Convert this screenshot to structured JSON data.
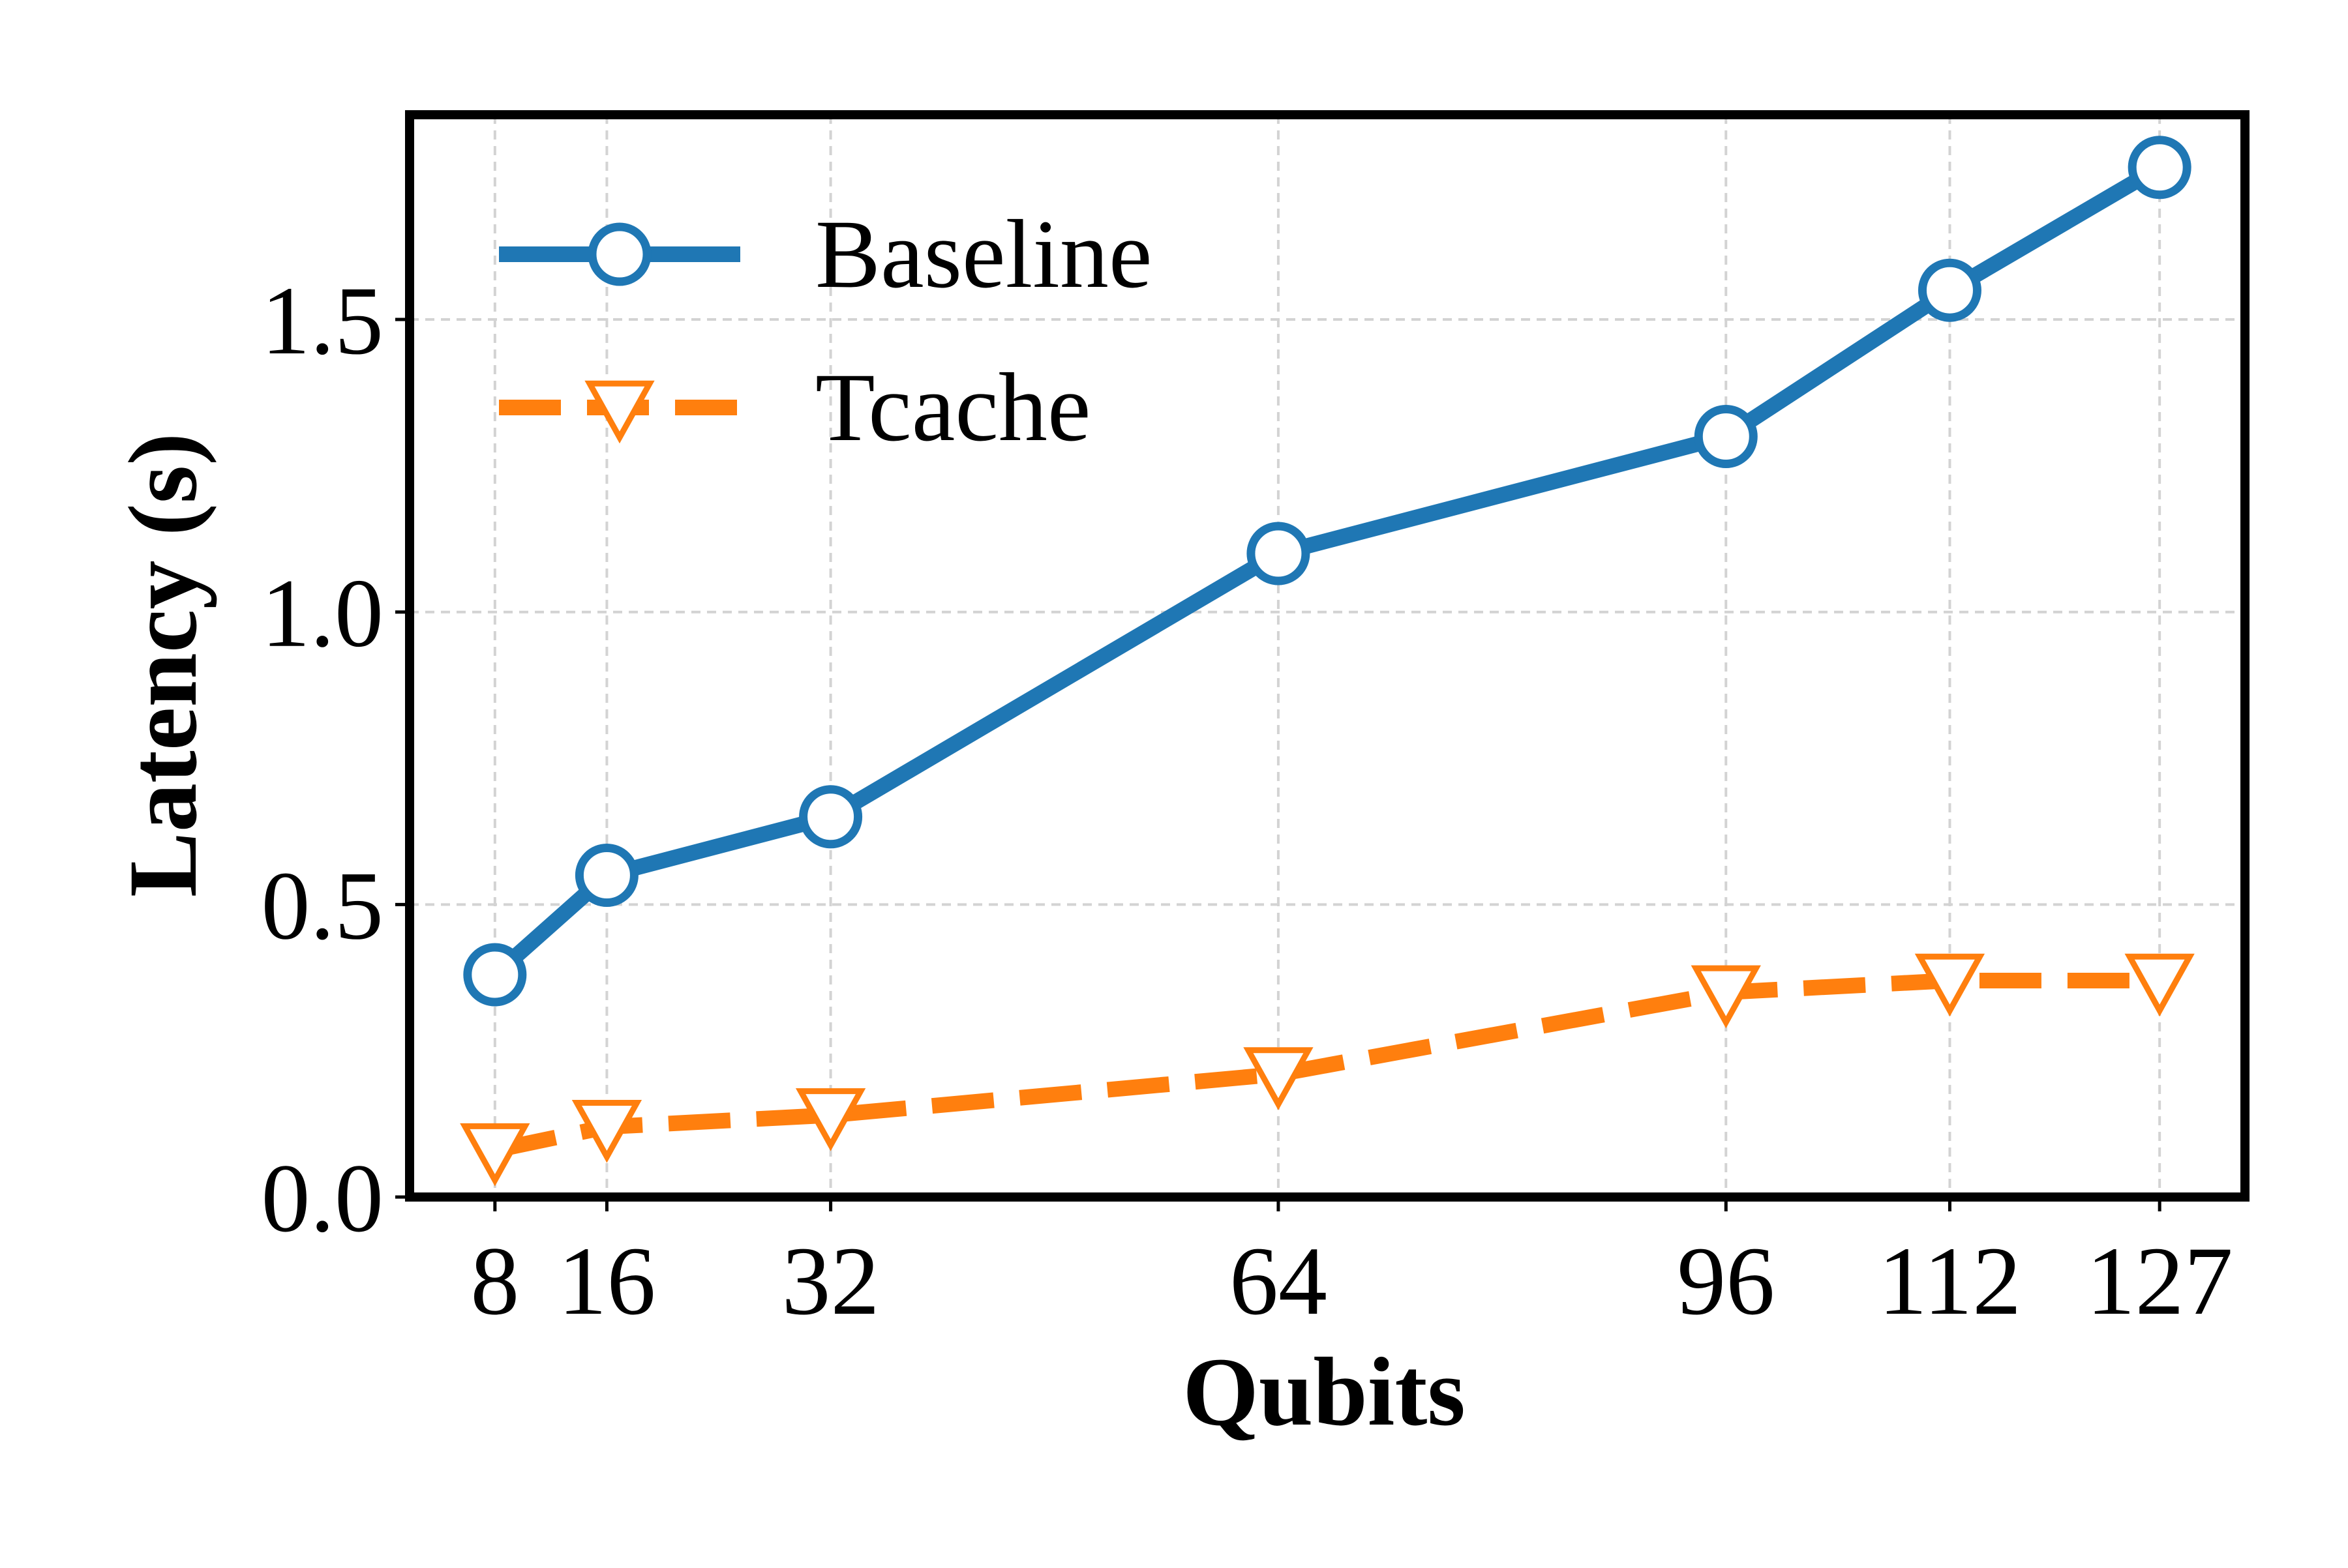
{
  "chart_data": {
    "type": "line",
    "xlabel": "Qubits",
    "ylabel": "Latency (s)",
    "x": [
      8,
      16,
      32,
      64,
      96,
      112,
      127
    ],
    "x_ticks": [
      "8",
      "16",
      "32",
      "64",
      "96",
      "112",
      "127"
    ],
    "xlim": [
      1.9,
      133.1
    ],
    "y_ticks": [
      "0.0",
      "0.5",
      "1.0",
      "1.5"
    ],
    "ylim": [
      0.0,
      1.85
    ],
    "grid": true,
    "legend_position": "top-left",
    "series": [
      {
        "name": "Baseline",
        "values": [
          0.38,
          0.55,
          0.65,
          1.1,
          1.3,
          1.55,
          1.76
        ],
        "color": "#1f77b4",
        "marker": "circle",
        "line_style": "solid"
      },
      {
        "name": "Tcache",
        "values": [
          0.08,
          0.12,
          0.14,
          0.21,
          0.35,
          0.37,
          0.37
        ],
        "color": "#ff7f0e",
        "marker": "triangle-down",
        "line_style": "dashed"
      }
    ]
  }
}
